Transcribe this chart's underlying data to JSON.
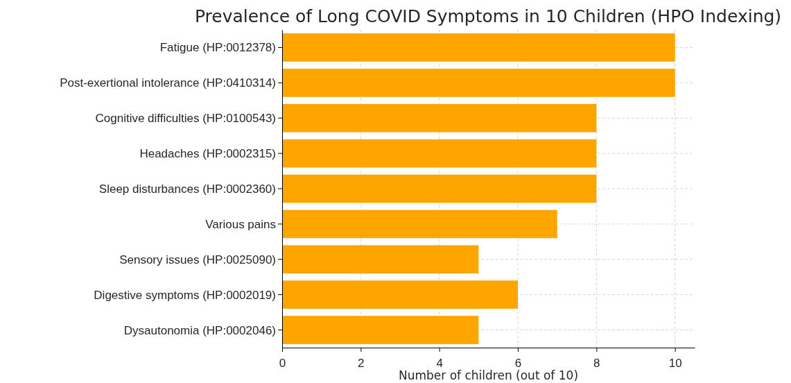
{
  "chart_data": {
    "type": "bar",
    "orientation": "horizontal",
    "title": "Prevalence of Long COVID Symptoms in 10 Children (HPO Indexing)",
    "xlabel": "Number of children (out of 10)",
    "categories": [
      "Fatigue (HP:0012378)",
      "Post-exertional intolerance (HP:0410314)",
      "Cognitive difficulties (HP:0100543)",
      "Headaches (HP:0002315)",
      "Sleep disturbances (HP:0002360)",
      "Various pains",
      "Sensory issues (HP:0025090)",
      "Digestive symptoms (HP:0002019)",
      "Dysautonomia (HP:0002046)"
    ],
    "values": [
      10,
      10,
      8,
      8,
      8,
      7,
      5,
      6,
      5
    ],
    "color": "#ffa500",
    "xlim": [
      0,
      10.5
    ],
    "xticks": [
      0,
      2,
      4,
      6,
      8,
      10
    ],
    "grid": true
  }
}
